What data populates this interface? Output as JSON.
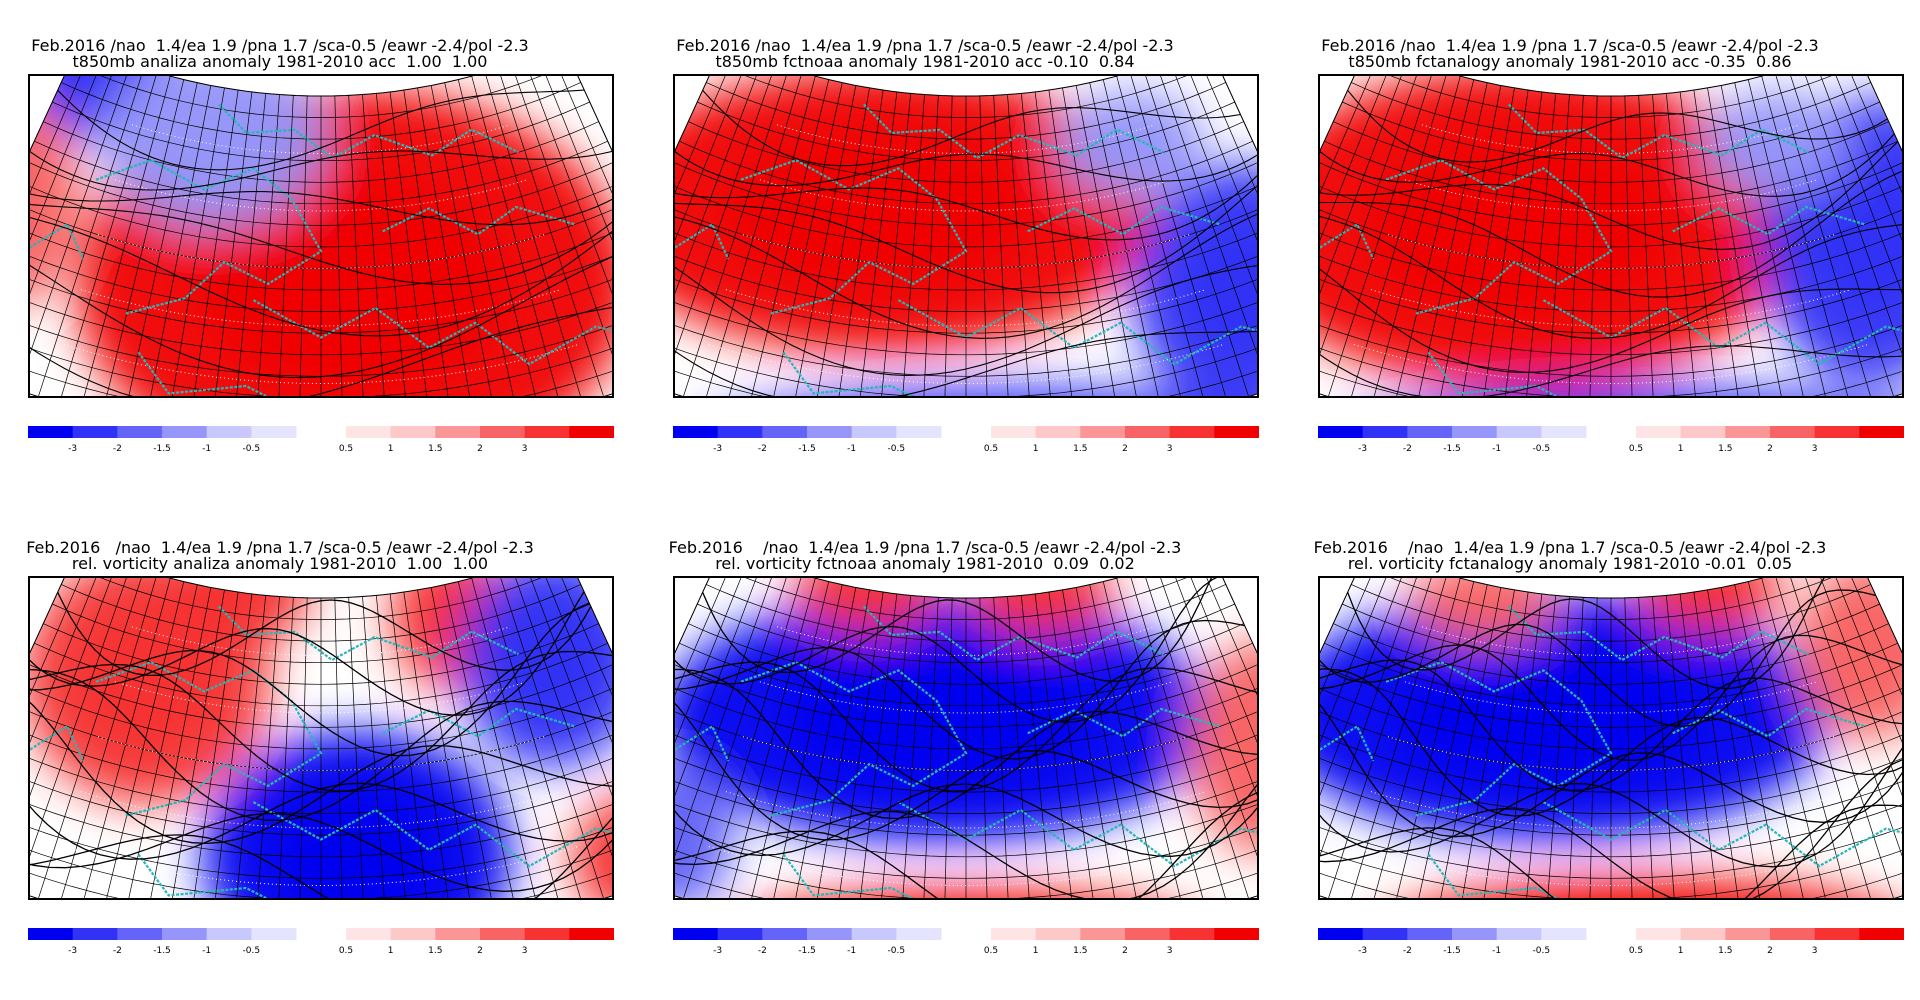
{
  "header_line": "Feb.2016 /nao  1.4/ea 1.9 /pna 1.7 /sca-0.5 /eawr -2.4/pol -2.3",
  "header_line_vort": "Feb.2016   /nao  1.4/ea 1.9 /pna 1.7 /sca-0.5 /eawr -2.4/pol -2.3",
  "panels": [
    {
      "title1": "Feb.2016 /nao  1.4/ea 1.9 /pna 1.7 /sca-0.5 /eawr -2.4/pol -2.3",
      "title2": "t850mb analiza anomaly 1981-2010 acc  1.00  1.00",
      "variable": "t850mb",
      "source": "analiza",
      "scores": [
        "1.00",
        "1.00"
      ]
    },
    {
      "title1": "Feb.2016 /nao  1.4/ea 1.9 /pna 1.7 /sca-0.5 /eawr -2.4/pol -2.3",
      "title2": "t850mb fctnoaa anomaly 1981-2010 acc -0.10  0.84",
      "variable": "t850mb",
      "source": "fctnoaa",
      "scores": [
        "-0.10",
        "0.84"
      ]
    },
    {
      "title1": "Feb.2016 /nao  1.4/ea 1.9 /pna 1.7 /sca-0.5 /eawr -2.4/pol -2.3",
      "title2": "t850mb fctanalogy anomaly 1981-2010 acc -0.35  0.86",
      "variable": "t850mb",
      "source": "fctanalogy",
      "scores": [
        "-0.35",
        "0.86"
      ]
    },
    {
      "title1": "Feb.2016   /nao  1.4/ea 1.9 /pna 1.7 /sca-0.5 /eawr -2.4/pol -2.3",
      "title2": "rel. vorticity analiza anomaly 1981-2010  1.00  1.00",
      "variable": "rel. vorticity",
      "source": "analiza",
      "scores": [
        "1.00",
        "1.00"
      ]
    },
    {
      "title1": "Feb.2016    /nao  1.4/ea 1.9 /pna 1.7 /sca-0.5 /eawr -2.4/pol -2.3",
      "title2": "rel. vorticity fctnoaa anomaly 1981-2010  0.09  0.02",
      "variable": "rel. vorticity",
      "source": "fctnoaa",
      "scores": [
        "0.09",
        "0.02"
      ]
    },
    {
      "title1": "Feb.2016    /nao  1.4/ea 1.9 /pna 1.7 /sca-0.5 /eawr -2.4/pol -2.3",
      "title2": "rel. vorticity fctanalogy anomaly 1981-2010 -0.01  0.05",
      "variable": "rel. vorticity",
      "source": "fctanalogy",
      "scores": [
        "-0.01",
        "0.05"
      ]
    }
  ],
  "legend": {
    "neg_labels": [
      "-3",
      "-2",
      "-1.5",
      "-1",
      "-0.5"
    ],
    "pos_labels": [
      "0.5",
      "1",
      "1.5",
      "2",
      "3"
    ],
    "neg_colors": [
      "#0000f0",
      "#3232f6",
      "#6464f8",
      "#9696fa",
      "#c8c8fc",
      "#e4e4fe"
    ],
    "pos_colors": [
      "#fee4e4",
      "#fcc8c8",
      "#fa9696",
      "#f86464",
      "#f63232",
      "#f00000"
    ]
  },
  "colors": {
    "coast": "#26b7b7",
    "contour": "#000000",
    "grid": "#000000"
  }
}
